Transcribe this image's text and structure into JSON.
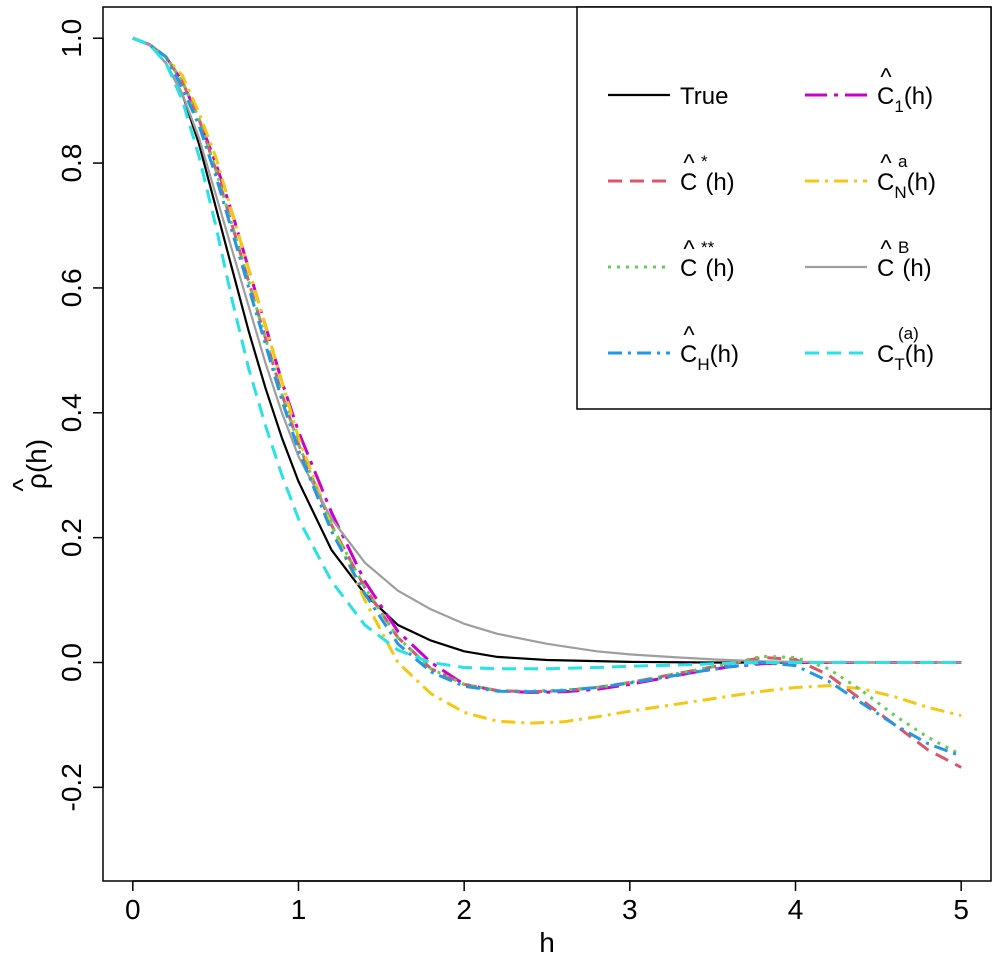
{
  "chart_data": {
    "type": "line",
    "xlabel": "h",
    "ylabel": {
      "base": "ρ",
      "hat": "^",
      "arg": "(h)"
    },
    "xlim": [
      -0.18,
      5.18
    ],
    "ylim": [
      -0.35,
      1.05
    ],
    "xticks": [
      0,
      1,
      2,
      3,
      4,
      5
    ],
    "xtick_labels": [
      "0",
      "1",
      "2",
      "3",
      "4",
      "5"
    ],
    "yticks": [
      -0.2,
      0.0,
      0.2,
      0.4,
      0.6,
      0.8,
      1.0
    ],
    "ytick_labels": [
      "-0.2",
      "0.0",
      "0.2",
      "0.4",
      "0.6",
      "0.8",
      "1.0"
    ],
    "grid": false,
    "legend_position": "top-right",
    "series": [
      {
        "key": "true",
        "name": "True",
        "color": "#000000",
        "dash": "solid",
        "x": [
          0,
          0.1,
          0.2,
          0.3,
          0.4,
          0.5,
          0.6,
          0.7,
          0.8,
          0.9,
          1.0,
          1.2,
          1.4,
          1.6,
          1.8,
          2.0,
          2.2,
          2.5,
          3.0,
          3.5,
          4.0,
          4.5,
          5.0
        ],
        "y": [
          1.0,
          0.99,
          0.96,
          0.91,
          0.83,
          0.73,
          0.63,
          0.53,
          0.44,
          0.36,
          0.29,
          0.18,
          0.11,
          0.06,
          0.035,
          0.018,
          0.009,
          0.004,
          0.001,
          0.0,
          0.0,
          0.0,
          0.0
        ]
      },
      {
        "key": "c1",
        "name": "C1(h)",
        "color": "#CC00CC",
        "dash": "longdash-dot",
        "x": [
          0,
          0.1,
          0.2,
          0.3,
          0.4,
          0.5,
          0.6,
          0.7,
          0.8,
          0.9,
          1.0,
          1.2,
          1.4,
          1.6,
          1.8,
          2.0,
          2.2,
          2.4,
          2.6,
          2.8,
          3.0,
          3.2,
          3.4,
          3.6,
          3.8,
          4.0,
          4.2,
          4.5,
          4.8,
          5.0
        ],
        "y": [
          1.0,
          0.99,
          0.97,
          0.93,
          0.87,
          0.8,
          0.72,
          0.63,
          0.54,
          0.45,
          0.37,
          0.24,
          0.13,
          0.05,
          0.0,
          -0.035,
          -0.045,
          -0.048,
          -0.047,
          -0.043,
          -0.035,
          -0.025,
          -0.015,
          -0.007,
          -0.002,
          0.0,
          0.0,
          0.0,
          0.0,
          0.0
        ]
      },
      {
        "key": "cstar",
        "name": "C*(h)",
        "color": "#DF536B",
        "dash": "dashed",
        "x": [
          0,
          0.1,
          0.2,
          0.3,
          0.4,
          0.5,
          0.6,
          0.7,
          0.8,
          0.9,
          1.0,
          1.2,
          1.4,
          1.6,
          1.8,
          2.0,
          2.2,
          2.4,
          2.6,
          2.8,
          3.0,
          3.2,
          3.4,
          3.6,
          3.8,
          4.0,
          4.2,
          4.4,
          4.6,
          4.8,
          5.0
        ],
        "y": [
          1.0,
          0.99,
          0.97,
          0.93,
          0.87,
          0.79,
          0.7,
          0.61,
          0.52,
          0.43,
          0.35,
          0.22,
          0.12,
          0.04,
          -0.01,
          -0.035,
          -0.045,
          -0.047,
          -0.045,
          -0.04,
          -0.032,
          -0.022,
          -0.012,
          -0.002,
          0.008,
          0.005,
          -0.02,
          -0.06,
          -0.1,
          -0.14,
          -0.168
        ]
      },
      {
        "key": "cna",
        "name": "CNa(h)",
        "color": "#F5C710",
        "dash": "dashdot",
        "x": [
          0,
          0.1,
          0.2,
          0.3,
          0.4,
          0.5,
          0.6,
          0.7,
          0.8,
          0.9,
          1.0,
          1.2,
          1.4,
          1.6,
          1.8,
          2.0,
          2.2,
          2.4,
          2.6,
          2.8,
          3.0,
          3.2,
          3.4,
          3.6,
          3.8,
          4.0,
          4.2,
          4.4,
          4.6,
          4.8,
          5.0
        ],
        "y": [
          1.0,
          0.99,
          0.97,
          0.94,
          0.88,
          0.81,
          0.72,
          0.63,
          0.54,
          0.45,
          0.36,
          0.22,
          0.1,
          0.0,
          -0.05,
          -0.08,
          -0.094,
          -0.097,
          -0.095,
          -0.087,
          -0.078,
          -0.07,
          -0.062,
          -0.054,
          -0.046,
          -0.04,
          -0.037,
          -0.042,
          -0.055,
          -0.072,
          -0.085
        ]
      },
      {
        "key": "cstarstar",
        "name": "C**(h)",
        "color": "#61D04F",
        "dash": "dotted",
        "x": [
          0,
          0.1,
          0.2,
          0.3,
          0.4,
          0.5,
          0.6,
          0.7,
          0.8,
          0.9,
          1.0,
          1.2,
          1.4,
          1.6,
          1.8,
          2.0,
          2.2,
          2.4,
          2.6,
          2.8,
          3.0,
          3.2,
          3.4,
          3.6,
          3.8,
          4.0,
          4.2,
          4.4,
          4.6,
          4.8,
          5.0
        ],
        "y": [
          1.0,
          0.99,
          0.97,
          0.93,
          0.87,
          0.79,
          0.7,
          0.61,
          0.52,
          0.43,
          0.35,
          0.22,
          0.12,
          0.04,
          -0.01,
          -0.035,
          -0.045,
          -0.046,
          -0.044,
          -0.04,
          -0.032,
          -0.022,
          -0.012,
          -0.002,
          0.01,
          0.008,
          -0.01,
          -0.045,
          -0.085,
          -0.12,
          -0.148
        ]
      },
      {
        "key": "cb",
        "name": "CB(h)",
        "color": "#9E9E9E",
        "dash": "solid",
        "x": [
          0,
          0.1,
          0.2,
          0.3,
          0.4,
          0.5,
          0.6,
          0.7,
          0.8,
          0.9,
          1.0,
          1.2,
          1.4,
          1.6,
          1.8,
          2.0,
          2.2,
          2.5,
          2.8,
          3.0,
          3.3,
          3.5,
          3.8,
          4.0,
          4.5,
          5.0
        ],
        "y": [
          1.0,
          0.99,
          0.96,
          0.91,
          0.84,
          0.75,
          0.66,
          0.57,
          0.48,
          0.4,
          0.33,
          0.23,
          0.16,
          0.115,
          0.085,
          0.062,
          0.046,
          0.03,
          0.018,
          0.013,
          0.008,
          0.005,
          0.002,
          0.001,
          0.0,
          0.0
        ]
      },
      {
        "key": "ch",
        "name": "CH(h)",
        "color": "#2297E6",
        "dash": "dashdot",
        "x": [
          0,
          0.1,
          0.2,
          0.3,
          0.4,
          0.5,
          0.6,
          0.7,
          0.8,
          0.9,
          1.0,
          1.2,
          1.4,
          1.6,
          1.8,
          2.0,
          2.2,
          2.4,
          2.6,
          2.8,
          3.0,
          3.2,
          3.4,
          3.6,
          3.8,
          4.0,
          4.2,
          4.4,
          4.6,
          4.8,
          5.0
        ],
        "y": [
          1.0,
          0.99,
          0.97,
          0.92,
          0.86,
          0.78,
          0.69,
          0.6,
          0.51,
          0.42,
          0.34,
          0.21,
          0.11,
          0.03,
          -0.015,
          -0.038,
          -0.046,
          -0.047,
          -0.045,
          -0.04,
          -0.033,
          -0.024,
          -0.015,
          -0.007,
          0.0,
          -0.005,
          -0.03,
          -0.065,
          -0.1,
          -0.13,
          -0.15
        ]
      },
      {
        "key": "ct",
        "name": "CT(a)(h)",
        "color": "#28E2E5",
        "dash": "dashed",
        "x": [
          0,
          0.1,
          0.2,
          0.3,
          0.4,
          0.5,
          0.6,
          0.7,
          0.8,
          0.9,
          1.0,
          1.2,
          1.4,
          1.6,
          1.8,
          2.0,
          2.2,
          2.5,
          2.8,
          3.0,
          3.3,
          3.5,
          3.8,
          4.0,
          4.5,
          5.0
        ],
        "y": [
          1.0,
          0.99,
          0.96,
          0.9,
          0.81,
          0.7,
          0.58,
          0.47,
          0.38,
          0.3,
          0.23,
          0.13,
          0.06,
          0.02,
          0.0,
          -0.008,
          -0.01,
          -0.01,
          -0.008,
          -0.006,
          -0.004,
          -0.002,
          0.0,
          0.0,
          0.0,
          0.0
        ]
      }
    ],
    "legend": [
      {
        "key": "true",
        "base": "True",
        "hat": "",
        "sup": "",
        "sub": "",
        "suffix": ""
      },
      {
        "key": "c1",
        "base": "C",
        "hat": "^",
        "sup": "",
        "sub": "1",
        "suffix": "(h)"
      },
      {
        "key": "cstar",
        "base": "C",
        "hat": "^",
        "sup": "*",
        "sub": "",
        "suffix": "(h)"
      },
      {
        "key": "cna",
        "base": "C",
        "hat": "^",
        "sup": "a",
        "sub": "N",
        "suffix": "(h)"
      },
      {
        "key": "cstarstar",
        "base": "C",
        "hat": "^",
        "sup": "**",
        "sub": "",
        "suffix": "(h)"
      },
      {
        "key": "cb",
        "base": "C",
        "hat": "^",
        "sup": "B",
        "sub": "",
        "suffix": "(h)"
      },
      {
        "key": "ch",
        "base": "C",
        "hat": "^",
        "sup": "",
        "sub": "H",
        "suffix": "(h)"
      },
      {
        "key": "ct",
        "base": "C",
        "hat": "",
        "sup": "(a)",
        "sub": "T",
        "suffix": "(h)"
      }
    ]
  }
}
